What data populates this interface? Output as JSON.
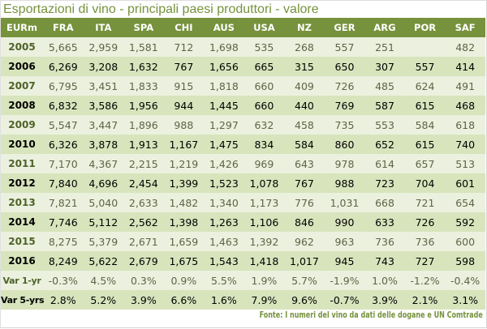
{
  "title": "Esportazioni di vino - principali paesi produttori - valore",
  "table": {
    "headers": [
      "EURm",
      "FRA",
      "ITA",
      "SPA",
      "CHI",
      "AUS",
      "USA",
      "NZ",
      "GER",
      "ARG",
      "POR",
      "SAF"
    ],
    "rows": [
      [
        "2005",
        "5,665",
        "2,959",
        "1,581",
        "712",
        "1,698",
        "535",
        "268",
        "557",
        "251",
        "",
        "482"
      ],
      [
        "2006",
        "6,269",
        "3,208",
        "1,632",
        "767",
        "1,656",
        "665",
        "315",
        "650",
        "307",
        "557",
        "414"
      ],
      [
        "2007",
        "6,795",
        "3,451",
        "1,833",
        "915",
        "1,818",
        "660",
        "409",
        "726",
        "485",
        "624",
        "491"
      ],
      [
        "2008",
        "6,832",
        "3,586",
        "1,956",
        "944",
        "1,445",
        "660",
        "440",
        "769",
        "587",
        "615",
        "468"
      ],
      [
        "2009",
        "5,547",
        "3,447",
        "1,896",
        "988",
        "1,297",
        "632",
        "458",
        "735",
        "553",
        "584",
        "618"
      ],
      [
        "2010",
        "6,326",
        "3,878",
        "1,913",
        "1,167",
        "1,475",
        "834",
        "584",
        "860",
        "652",
        "615",
        "740"
      ],
      [
        "2011",
        "7,170",
        "4,367",
        "2,215",
        "1,219",
        "1,426",
        "969",
        "643",
        "978",
        "614",
        "657",
        "513"
      ],
      [
        "2012",
        "7,840",
        "4,696",
        "2,454",
        "1,399",
        "1,523",
        "1,078",
        "767",
        "988",
        "723",
        "704",
        "601"
      ],
      [
        "2013",
        "7,821",
        "5,040",
        "2,633",
        "1,482",
        "1,340",
        "1,173",
        "776",
        "1,031",
        "668",
        "721",
        "654"
      ],
      [
        "2014",
        "7,746",
        "5,112",
        "2,562",
        "1,398",
        "1,263",
        "1,106",
        "846",
        "990",
        "633",
        "726",
        "592"
      ],
      [
        "2015",
        "8,275",
        "5,379",
        "2,671",
        "1,659",
        "1,463",
        "1,392",
        "962",
        "963",
        "736",
        "736",
        "600"
      ],
      [
        "2016",
        "8,249",
        "5,622",
        "2,679",
        "1,675",
        "1,543",
        "1,418",
        "1,017",
        "945",
        "743",
        "727",
        "598"
      ],
      [
        "Var 1-yr",
        "-0.3%",
        "4.5%",
        "0.3%",
        "0.9%",
        "5.5%",
        "1.9%",
        "5.7%",
        "-1.9%",
        "1.0%",
        "-1.2%",
        "-0.4%"
      ],
      [
        "Var 5-yrs",
        "2.8%",
        "5.2%",
        "3.9%",
        "6.6%",
        "1.6%",
        "7.9%",
        "9.6%",
        "-0.7%",
        "3.9%",
        "2.1%",
        "3.1%"
      ]
    ]
  },
  "source": "Fonte: I numeri del vino da dati delle dogane e UN Comtrade",
  "colors": {
    "header": "#76923c",
    "row_light": "#ebf1de",
    "row_dark": "#d8e4bc"
  }
}
